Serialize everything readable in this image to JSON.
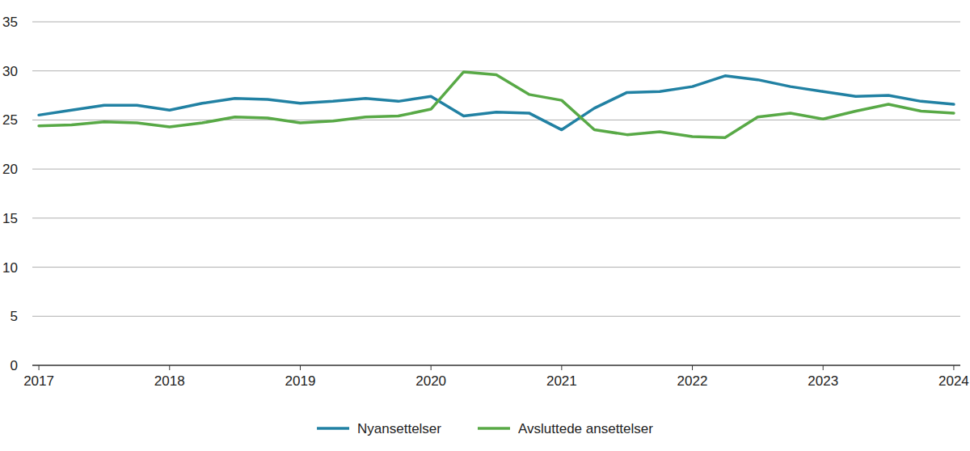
{
  "chart_data": {
    "type": "line",
    "x": [
      2017,
      2017.25,
      2017.5,
      2017.75,
      2018,
      2018.25,
      2018.5,
      2018.75,
      2019,
      2019.25,
      2019.5,
      2019.75,
      2020,
      2020.25,
      2020.5,
      2020.75,
      2021,
      2021.25,
      2021.5,
      2021.75,
      2022,
      2022.25,
      2022.5,
      2022.75,
      2023,
      2023.25,
      2023.5,
      2023.75,
      2024
    ],
    "xlim": [
      2016.95,
      2024.05
    ],
    "xticks": [
      2017,
      2018,
      2019,
      2020,
      2021,
      2022,
      2023,
      2024
    ],
    "ylim": [
      0,
      35
    ],
    "yticks": [
      0,
      5,
      10,
      15,
      20,
      25,
      30,
      35
    ],
    "grid": true,
    "legend": "bottom",
    "series": [
      {
        "name": "Nyansettelser",
        "color": "#2181a3",
        "values": [
          25.5,
          26.0,
          26.5,
          26.5,
          26.0,
          26.7,
          27.2,
          27.1,
          26.7,
          26.9,
          27.2,
          26.9,
          27.4,
          25.4,
          25.8,
          25.7,
          24.0,
          26.2,
          27.8,
          27.9,
          28.4,
          29.5,
          29.1,
          28.4,
          27.9,
          27.4,
          27.5,
          26.9,
          26.6
        ]
      },
      {
        "name": "Avsluttede ansettelser",
        "color": "#58a946",
        "values": [
          24.4,
          24.5,
          24.8,
          24.7,
          24.3,
          24.7,
          25.3,
          25.2,
          24.7,
          24.9,
          25.3,
          25.4,
          26.1,
          29.9,
          29.6,
          27.6,
          27.0,
          24.0,
          23.5,
          23.8,
          23.3,
          23.2,
          25.3,
          25.7,
          25.1,
          25.9,
          26.6,
          25.9,
          25.7
        ]
      }
    ]
  }
}
